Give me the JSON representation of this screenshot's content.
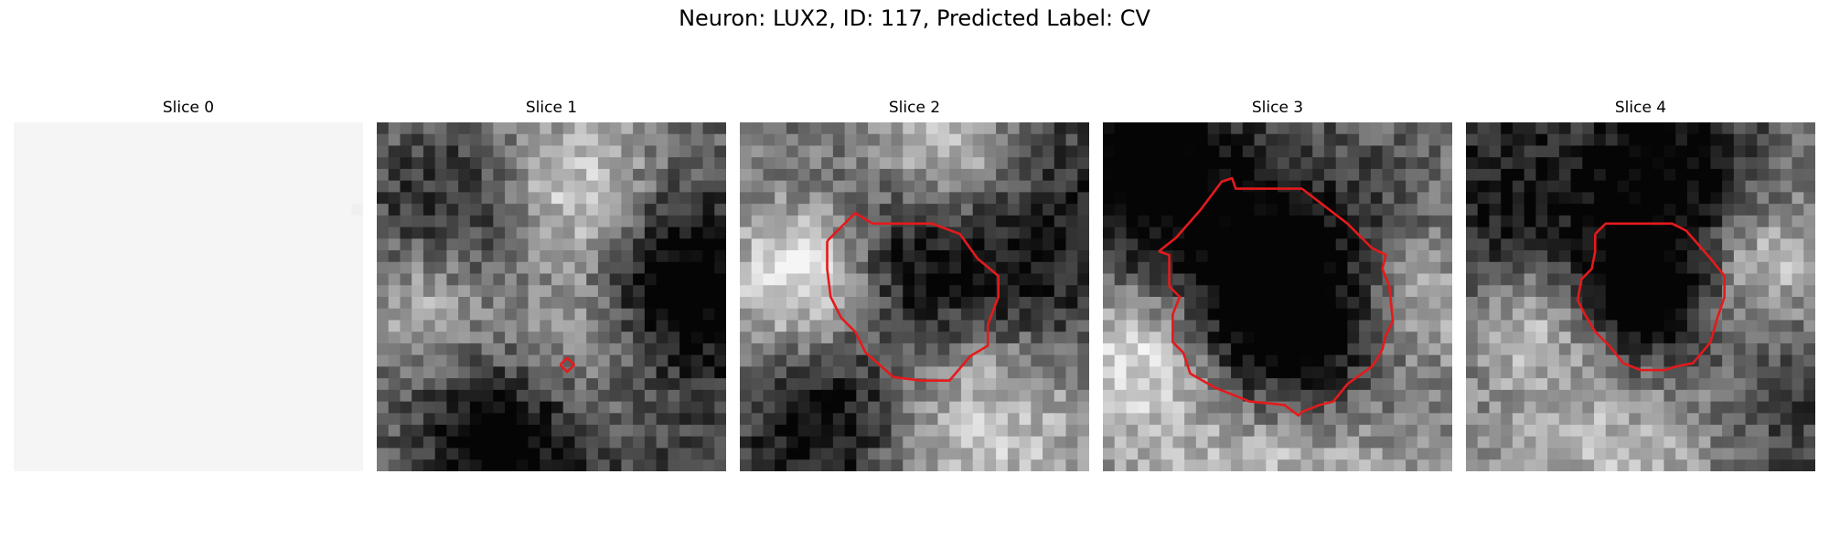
{
  "figure": {
    "title": "Neuron: LUX2, ID: 117, Predicted Label: CV",
    "contour_color": "#e41a1c",
    "grid_size": 30
  },
  "panels": [
    {
      "label": "Slice 0",
      "blobs": [
        [
          0.15,
          0.15,
          0.5,
          0.6,
          0.55
        ],
        [
          0.35,
          0.5,
          0.55,
          0.6,
          0.45
        ],
        [
          0.55,
          0.3,
          0.6,
          0.62,
          0.35
        ],
        [
          0.28,
          0.72,
          0.6,
          0.55,
          0.65
        ],
        [
          0.85,
          0.3,
          -0.7,
          0.2,
          0.4
        ],
        [
          0.4,
          0.32,
          -0.5,
          0.14,
          0.42
        ],
        [
          0.27,
          0.9,
          -0.75,
          0.22,
          0.5
        ],
        [
          0.68,
          0.15,
          0.4,
          0.2,
          0.3
        ]
      ],
      "base": 0.45,
      "contour": []
    },
    {
      "label": "Slice 1",
      "blobs": [
        [
          0.55,
          0.22,
          0.55,
          0.18,
          0.5
        ],
        [
          0.15,
          0.5,
          0.45,
          0.14,
          0.6
        ],
        [
          0.6,
          0.62,
          0.4,
          0.18,
          0.35
        ],
        [
          0.25,
          0.3,
          -0.45,
          0.2,
          0.35
        ],
        [
          0.85,
          0.45,
          -0.6,
          0.18,
          0.5
        ],
        [
          0.35,
          0.92,
          -0.55,
          0.16,
          0.55
        ],
        [
          0.85,
          0.8,
          -0.2,
          0.4,
          0.5
        ]
      ],
      "base": 0.45,
      "contour": [
        [
          0.525,
          0.695
        ],
        [
          0.545,
          0.675
        ],
        [
          0.565,
          0.695
        ],
        [
          0.545,
          0.715
        ],
        [
          0.525,
          0.695
        ]
      ]
    },
    {
      "label": "Slice 2",
      "blobs": [
        [
          0.2,
          0.45,
          0.65,
          0.16,
          0.55
        ],
        [
          0.5,
          0.4,
          -0.6,
          0.2,
          0.3
        ],
        [
          0.6,
          0.12,
          0.55,
          0.16,
          0.4
        ],
        [
          0.7,
          0.78,
          0.5,
          0.25,
          0.45
        ],
        [
          0.85,
          0.55,
          -0.3,
          0.2,
          0.3
        ],
        [
          0.25,
          0.85,
          -0.55,
          0.18,
          0.55
        ],
        [
          0.92,
          0.2,
          -0.3,
          0.25,
          0.4
        ]
      ],
      "base": 0.45,
      "contour": [
        [
          0.25,
          0.34
        ],
        [
          0.33,
          0.26
        ],
        [
          0.38,
          0.29
        ],
        [
          0.55,
          0.29
        ],
        [
          0.63,
          0.32
        ],
        [
          0.68,
          0.39
        ],
        [
          0.74,
          0.44
        ],
        [
          0.74,
          0.5
        ],
        [
          0.71,
          0.58
        ],
        [
          0.71,
          0.64
        ],
        [
          0.66,
          0.67
        ],
        [
          0.6,
          0.74
        ],
        [
          0.52,
          0.74
        ],
        [
          0.44,
          0.73
        ],
        [
          0.36,
          0.66
        ],
        [
          0.33,
          0.6
        ],
        [
          0.29,
          0.56
        ],
        [
          0.26,
          0.5
        ],
        [
          0.25,
          0.42
        ],
        [
          0.25,
          0.34
        ]
      ]
    },
    {
      "label": "Slice 3",
      "blobs": [
        [
          0.1,
          0.1,
          -0.6,
          0.2,
          0.45
        ],
        [
          0.5,
          0.6,
          -0.65,
          0.2,
          0.2
        ],
        [
          0.5,
          0.4,
          -0.4,
          0.3,
          0.45
        ],
        [
          0.12,
          0.65,
          0.5,
          0.14,
          0.55
        ],
        [
          0.9,
          0.5,
          0.35,
          0.14,
          0.6
        ],
        [
          0.45,
          0.95,
          0.45,
          0.28,
          0.35
        ]
      ],
      "base": 0.48,
      "contour": [
        [
          0.16,
          0.37
        ],
        [
          0.21,
          0.33
        ],
        [
          0.28,
          0.25
        ],
        [
          0.34,
          0.17
        ],
        [
          0.37,
          0.16
        ],
        [
          0.38,
          0.19
        ],
        [
          0.57,
          0.19
        ],
        [
          0.7,
          0.29
        ],
        [
          0.77,
          0.36
        ],
        [
          0.81,
          0.38
        ],
        [
          0.8,
          0.42
        ],
        [
          0.82,
          0.47
        ],
        [
          0.83,
          0.57
        ],
        [
          0.81,
          0.61
        ],
        [
          0.8,
          0.65
        ],
        [
          0.79,
          0.67
        ],
        [
          0.77,
          0.7
        ],
        [
          0.7,
          0.75
        ],
        [
          0.66,
          0.8
        ],
        [
          0.62,
          0.81
        ],
        [
          0.57,
          0.83
        ],
        [
          0.56,
          0.84
        ],
        [
          0.52,
          0.81
        ],
        [
          0.42,
          0.8
        ],
        [
          0.32,
          0.76
        ],
        [
          0.25,
          0.72
        ],
        [
          0.23,
          0.66
        ],
        [
          0.2,
          0.63
        ],
        [
          0.2,
          0.58
        ],
        [
          0.2,
          0.55
        ],
        [
          0.22,
          0.5
        ],
        [
          0.19,
          0.47
        ],
        [
          0.19,
          0.42
        ],
        [
          0.19,
          0.38
        ],
        [
          0.16,
          0.37
        ]
      ]
    },
    {
      "label": "Slice 4",
      "blobs": [
        [
          0.5,
          0.52,
          -0.7,
          0.14,
          0.25
        ],
        [
          0.6,
          0.15,
          -0.55,
          0.2,
          0.5
        ],
        [
          0.1,
          0.25,
          -0.45,
          0.25,
          0.55
        ],
        [
          0.2,
          0.55,
          0.4,
          0.14,
          0.55
        ],
        [
          0.85,
          0.4,
          0.4,
          0.14,
          0.45
        ],
        [
          0.5,
          0.9,
          0.3,
          0.25,
          0.5
        ],
        [
          0.92,
          0.85,
          -0.3,
          0.25,
          0.5
        ]
      ],
      "base": 0.5,
      "contour": [
        [
          0.37,
          0.32
        ],
        [
          0.4,
          0.29
        ],
        [
          0.44,
          0.29
        ],
        [
          0.59,
          0.29
        ],
        [
          0.63,
          0.31
        ],
        [
          0.7,
          0.39
        ],
        [
          0.74,
          0.44
        ],
        [
          0.74,
          0.5
        ],
        [
          0.72,
          0.56
        ],
        [
          0.7,
          0.63
        ],
        [
          0.65,
          0.69
        ],
        [
          0.6,
          0.7
        ],
        [
          0.57,
          0.71
        ],
        [
          0.5,
          0.71
        ],
        [
          0.45,
          0.69
        ],
        [
          0.41,
          0.64
        ],
        [
          0.37,
          0.6
        ],
        [
          0.34,
          0.55
        ],
        [
          0.32,
          0.51
        ],
        [
          0.33,
          0.45
        ],
        [
          0.36,
          0.42
        ],
        [
          0.37,
          0.37
        ],
        [
          0.37,
          0.32
        ]
      ]
    }
  ]
}
